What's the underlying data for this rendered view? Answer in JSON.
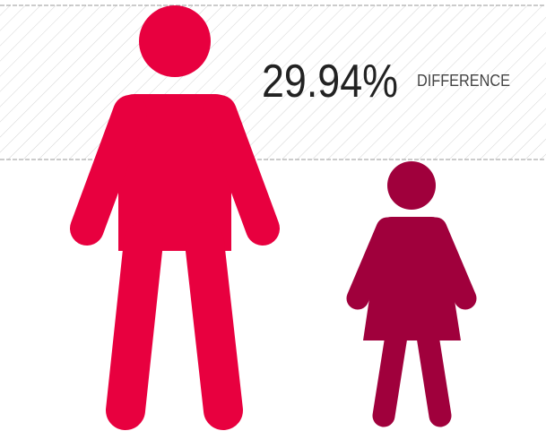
{
  "stat": {
    "value": "29.94%",
    "label": "DIFFERENCE"
  }
}
